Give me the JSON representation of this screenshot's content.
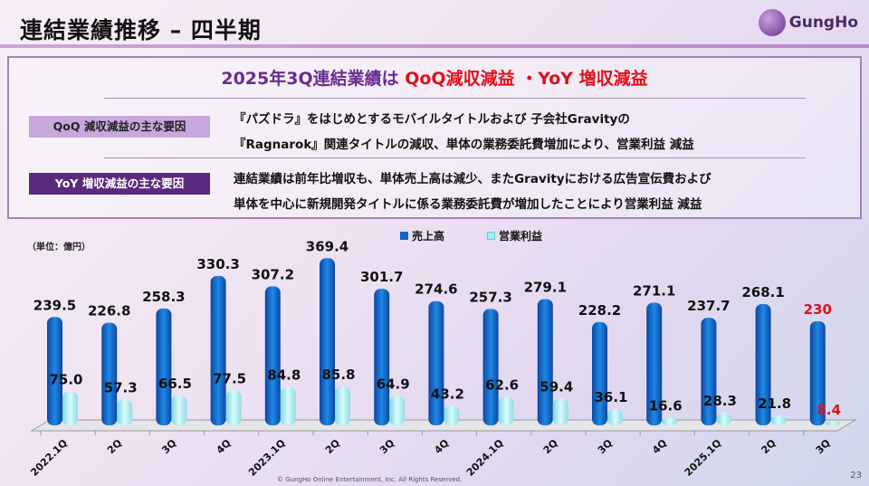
{
  "header": {
    "title": "連結業績推移 – 四半期",
    "logo_text": "GungHo"
  },
  "summary": {
    "headline_prefix": "2025年3Q連結業績は ",
    "headline_highlight": "QoQ減収減益 ・YoY 増収減益",
    "qoq_tag": "QoQ 減収減益の主な要因",
    "qoq_lines": [
      "『パズドラ』をはじめとするモバイルタイトルおよび 子会社Gravityの",
      "『Ragnarok』関連タイトルの減収、単体の業務委託費増加により、営業利益 減益"
    ],
    "yoy_tag": "YoY 増収減益の主な要因",
    "yoy_lines": [
      "連結業績は前年比増収も、単体売上高は減少、またGravityにおける広告宣伝費および",
      "単体を中心に新規開発タイトルに係る業務委託費が増加したことにより営業利益 減益"
    ]
  },
  "chart_data": {
    "type": "bar",
    "unit_label": "（単位：億円）",
    "categories": [
      "2022.1Q",
      "2Q",
      "3Q",
      "4Q",
      "2023.1Q",
      "2Q",
      "3Q",
      "4Q",
      "2024.1Q",
      "2Q",
      "3Q",
      "4Q",
      "2025.1Q",
      "2Q",
      "3Q"
    ],
    "series": [
      {
        "name": "売上高",
        "color": "#1565c0",
        "values": [
          239.5,
          226.8,
          258.3,
          330.3,
          307.2,
          369.4,
          301.7,
          274.6,
          257.3,
          279.1,
          228.2,
          271.1,
          237.7,
          268.1,
          230
        ]
      },
      {
        "name": "営業利益",
        "color": "#a8eef0",
        "values": [
          75.0,
          57.3,
          66.5,
          77.5,
          84.8,
          85.8,
          64.9,
          43.2,
          62.6,
          59.4,
          36.1,
          16.6,
          28.3,
          21.8,
          8.4
        ]
      }
    ],
    "labels_revenue": [
      "239.5",
      "226.8",
      "258.3",
      "330.3",
      "307.2",
      "369.4",
      "301.7",
      "274.6",
      "257.3",
      "279.1",
      "228.2",
      "271.1",
      "237.7",
      "268.1",
      "230"
    ],
    "labels_profit": [
      "75.0",
      "57.3",
      "66.5",
      "77.5",
      "84.8",
      "85.8",
      "64.9",
      "43.2",
      "62.6",
      "59.4",
      "36.1",
      "16.6",
      "28.3",
      "21.8",
      "8.4"
    ],
    "highlight_color": "#e0101a",
    "ylim": [
      0,
      400
    ],
    "legend": "top-center"
  },
  "footer": {
    "copyright": "© GungHo Online Entertainment, Inc. All Rights Reserved.",
    "page": "23"
  }
}
